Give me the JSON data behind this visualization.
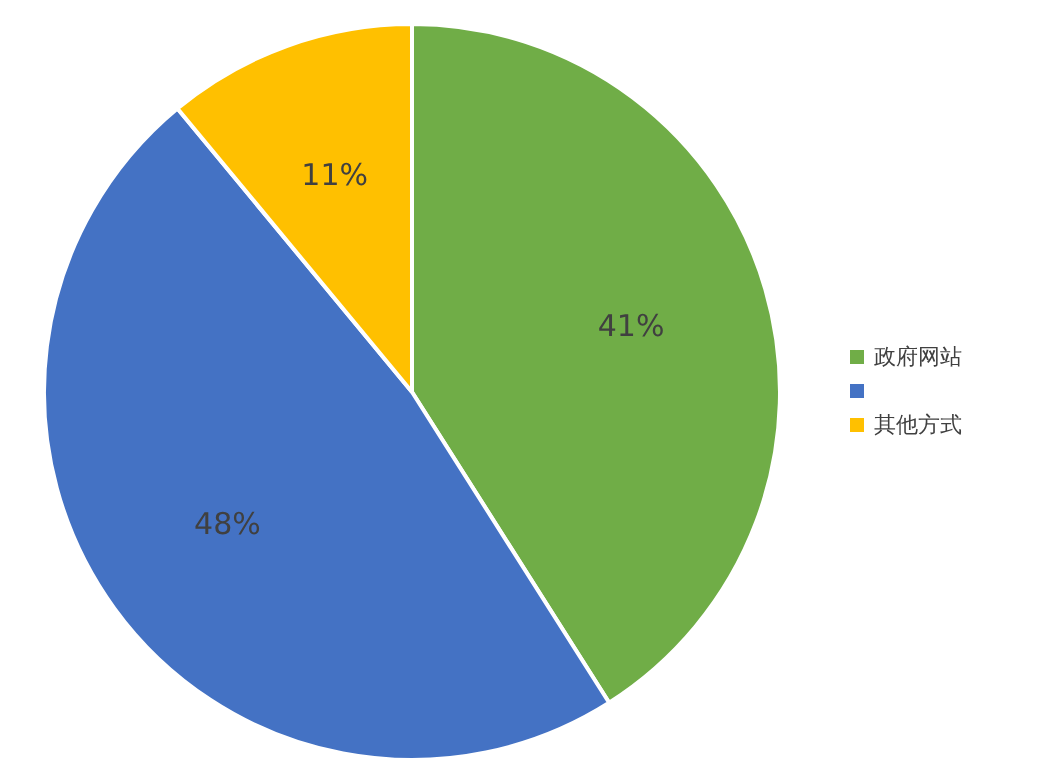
{
  "chart_data": {
    "type": "pie",
    "categories": [
      "政府网站",
      null,
      "其他方式"
    ],
    "values": [
      41,
      48,
      11
    ],
    "colors": [
      "#70ad47",
      "#4472c4",
      "#ffc000"
    ],
    "value_labels": [
      "41%",
      "48%",
      "11%"
    ],
    "legend": "right"
  }
}
